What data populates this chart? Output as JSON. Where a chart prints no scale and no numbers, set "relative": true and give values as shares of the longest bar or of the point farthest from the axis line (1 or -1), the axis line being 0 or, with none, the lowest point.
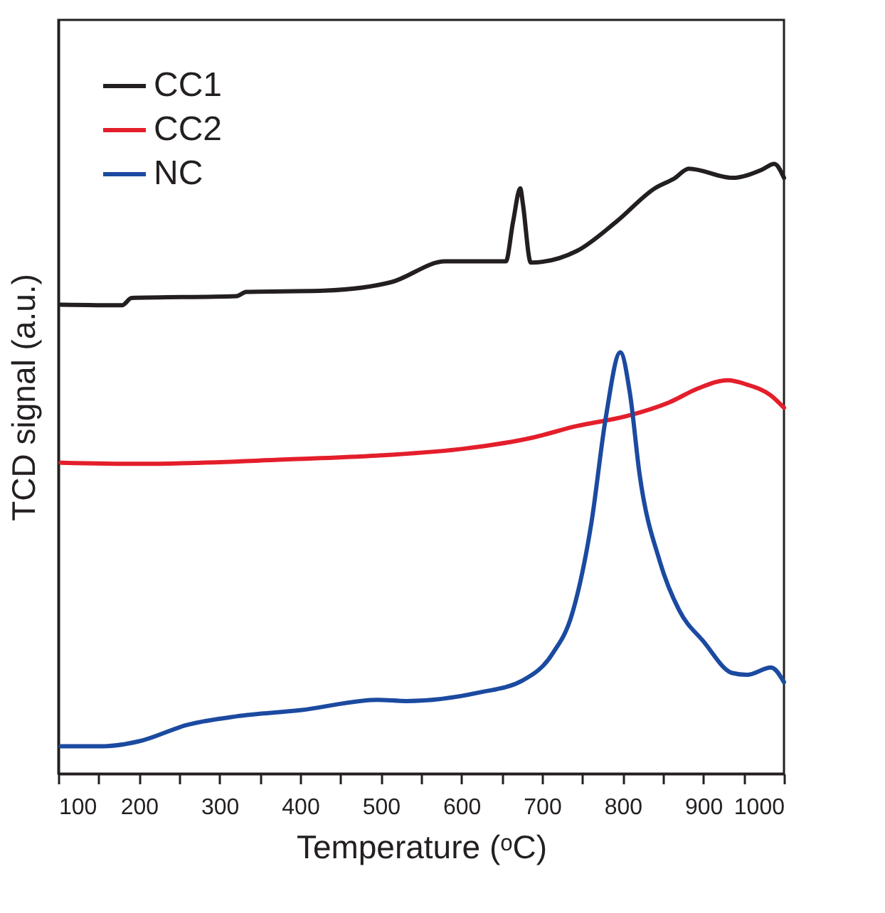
{
  "chart_data": {
    "type": "line",
    "xlabel": "Temperature (ᵒC)",
    "ylabel": "TCD signal (a.u.)",
    "relative": true,
    "xlim": [
      100,
      1000
    ],
    "xticks": [
      100,
      {
        "value": 150,
        "label": null
      },
      200,
      {
        "value": 250,
        "label": null
      },
      300,
      {
        "value": 350,
        "label": null
      },
      400,
      {
        "value": 450,
        "label": null
      },
      500,
      {
        "value": 550,
        "label": null
      },
      600,
      {
        "value": 650,
        "label": null
      },
      700,
      {
        "value": 750,
        "label": null
      },
      800,
      {
        "value": 850,
        "label": null
      },
      900,
      {
        "value": 950,
        "label": null
      },
      1000
    ],
    "tick_labels": "x",
    "grid": false,
    "legend": "top left",
    "line_style": "solid",
    "marker": "none",
    "series": [
      {
        "name": "CC1",
        "color": "#231f20",
        "x": [
          103,
          179,
          191,
          321,
          333,
          429,
          513,
          580,
          655,
          664,
          673,
          676,
          686,
          743,
          792,
          840,
          864,
          882,
          936,
          972,
          988,
          1000
        ],
        "values": [
          0.769,
          0.768,
          0.78,
          0.783,
          0.79,
          0.792,
          0.806,
          0.84,
          0.84,
          0.905,
          0.96,
          0.936,
          0.838,
          0.857,
          0.905,
          0.96,
          0.976,
          0.992,
          0.977,
          0.99,
          1.0,
          0.977
        ]
      },
      {
        "name": "CC2",
        "color": "#e41e2b",
        "x": [
          103,
          200,
          380,
          501,
          604,
          688,
          743,
          804,
          858,
          894,
          930,
          954,
          984,
          1000
        ],
        "values": [
          0.51,
          0.508,
          0.515,
          0.522,
          0.533,
          0.551,
          0.57,
          0.586,
          0.609,
          0.632,
          0.645,
          0.638,
          0.62,
          0.6
        ]
      },
      {
        "name": "NC",
        "color": "#1b4aa0",
        "x": [
          103,
          157,
          200,
          260,
          321,
          400,
          496,
          532,
          622,
          676,
          713,
          737,
          761,
          779,
          797,
          809,
          821,
          846,
          870,
          900,
          936,
          954,
          984,
          1000
        ],
        "values": [
          0.045,
          0.045,
          0.053,
          0.08,
          0.094,
          0.104,
          0.121,
          0.119,
          0.133,
          0.153,
          0.197,
          0.261,
          0.41,
          0.584,
          0.691,
          0.623,
          0.49,
          0.348,
          0.268,
          0.217,
          0.165,
          0.162,
          0.174,
          0.15
        ]
      }
    ]
  }
}
